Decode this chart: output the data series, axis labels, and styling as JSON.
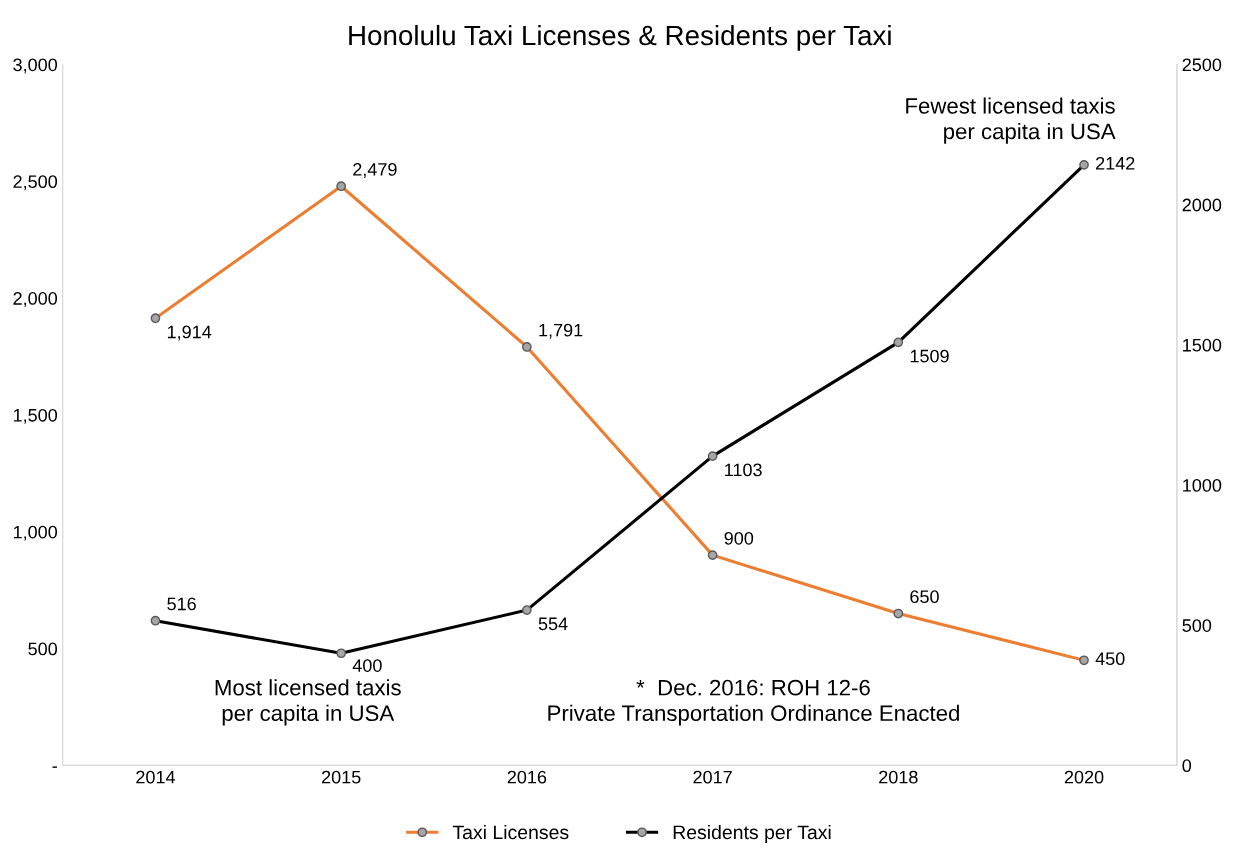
{
  "chart_data": {
    "type": "line",
    "title": "Honolulu Taxi Licenses & Residents per Taxi",
    "categories": [
      "2014",
      "2015",
      "2016",
      "2017",
      "2018",
      "2020"
    ],
    "series": [
      {
        "name": "Taxi Licenses",
        "color": "#ed7d31",
        "values": [
          1914,
          2479,
          1791,
          900,
          650,
          450
        ],
        "value_labels": [
          "1,914",
          "2,479",
          "1,791",
          "900",
          "650",
          "450"
        ]
      },
      {
        "name": "Residents per Taxi",
        "color": "#000000",
        "axis": "y2",
        "values": [
          516,
          400,
          554,
          1103,
          1509,
          2142
        ],
        "value_labels": [
          "516",
          "400",
          "554",
          "1103",
          "1509",
          "2142"
        ]
      }
    ],
    "ylim": [
      0,
      3000
    ],
    "yticks": [
      {
        "value": 0,
        "label": "-"
      },
      500,
      {
        "value": 1000,
        "label": "1,000"
      },
      {
        "value": 1500,
        "label": "1,500"
      },
      {
        "value": 2000,
        "label": "2,000"
      },
      {
        "value": 2500,
        "label": "2,500"
      },
      {
        "value": 3000,
        "label": "3,000"
      }
    ],
    "y2lim": [
      0,
      2500
    ],
    "y2ticks": [
      0,
      500,
      1000,
      1500,
      2000,
      2500
    ],
    "marker": "circle",
    "line_style": "solid",
    "grid": false,
    "legend": "bottom",
    "annotations": [
      "Fewest licensed taxis\nper capita in USA",
      "Most licensed taxis\nper capita in USA",
      "*  Dec. 2016: ROH 12-6\nPrivate Transportation Ordinance Enacted"
    ]
  }
}
